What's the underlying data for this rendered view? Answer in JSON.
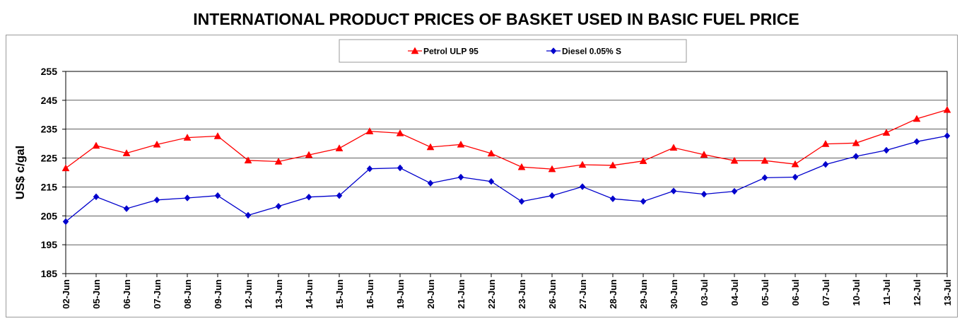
{
  "chart_data": {
    "type": "line",
    "title": "INTERNATIONAL PRODUCT PRICES OF BASKET USED IN BASIC FUEL PRICE",
    "xlabel": "",
    "ylabel": "US$ c/gal",
    "ylim": [
      185,
      255
    ],
    "yticks": [
      185,
      195,
      205,
      215,
      225,
      235,
      245,
      255
    ],
    "grid": true,
    "legend_position": "top",
    "categories": [
      "02-Jun",
      "05-Jun",
      "06-Jun",
      "07-Jun",
      "08-Jun",
      "09-Jun",
      "12-Jun",
      "13-Jun",
      "14-Jun",
      "15-Jun",
      "16-Jun",
      "19-Jun",
      "20-Jun",
      "21-Jun",
      "22-Jun",
      "23-Jun",
      "26-Jun",
      "27-Jun",
      "28-Jun",
      "29-Jun",
      "30-Jun",
      "03-Jul",
      "04-Jul",
      "05-Jul",
      "06-Jul",
      "07-Jul",
      "10-Jul",
      "11-Jul",
      "12-Jul",
      "13-Jul"
    ],
    "series": [
      {
        "name": "Petrol ULP 95",
        "color": "#ff0000",
        "marker": "triangle",
        "values": [
          221.5,
          229.3,
          226.7,
          229.7,
          232.1,
          232.6,
          224.2,
          223.8,
          226.1,
          228.4,
          234.3,
          233.6,
          228.8,
          229.7,
          226.6,
          221.9,
          221.2,
          222.7,
          222.5,
          224.0,
          228.6,
          226.2,
          224.1,
          224.1,
          222.9,
          229.9,
          230.2,
          233.8,
          238.6,
          241.7
        ]
      },
      {
        "name": "Diesel 0.05% S",
        "color": "#0000cc",
        "marker": "diamond",
        "values": [
          203.0,
          211.6,
          207.5,
          210.5,
          211.2,
          212.0,
          205.2,
          208.3,
          211.5,
          212.0,
          221.3,
          221.6,
          216.3,
          218.4,
          216.9,
          210.0,
          212.0,
          215.1,
          210.9,
          210.0,
          213.6,
          212.5,
          213.5,
          218.2,
          218.4,
          222.8,
          225.6,
          227.7,
          230.7,
          232.7
        ]
      }
    ]
  }
}
